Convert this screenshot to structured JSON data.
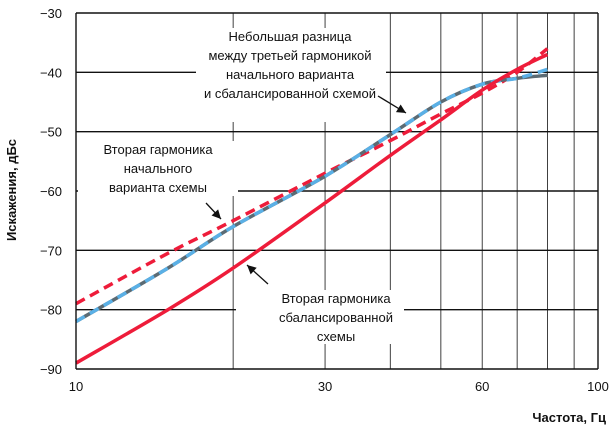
{
  "chart_data": {
    "type": "line",
    "xlabel": "Частота, Гц",
    "ylabel": "Искажения, дБс",
    "xscale": "log",
    "xlim": [
      10,
      100
    ],
    "ylim": [
      -90,
      -30
    ],
    "x_tick_labels": [
      "10",
      "30",
      "60",
      "100"
    ],
    "x_gridlines": [
      20,
      30,
      40,
      50,
      60,
      70,
      80,
      90
    ],
    "y_ticks": [
      -90,
      -80,
      -70,
      -60,
      -50,
      -40,
      -30
    ],
    "grid": true,
    "series": [
      {
        "color": "#ee1c3a",
        "dash": "dashed",
        "x": [
          10,
          15,
          20,
          30,
          40,
          50,
          60,
          70,
          80
        ],
        "y": [
          -79,
          -70.5,
          -65,
          -57,
          -51.5,
          -47,
          -43.5,
          -40,
          -36
        ]
      },
      {
        "color": "#5b6b74",
        "dash": "solid",
        "x": [
          10,
          15,
          20,
          30,
          40,
          50,
          60,
          70,
          80
        ],
        "y": [
          -82,
          -73,
          -66,
          -57.5,
          -50.5,
          -45,
          -42,
          -41,
          -40.5
        ]
      },
      {
        "color": "#5ab0e6",
        "dash": "dashed",
        "x": [
          10,
          15,
          20,
          30,
          40,
          50,
          60,
          70,
          80
        ],
        "y": [
          -82,
          -73,
          -66,
          -57.5,
          -50.5,
          -45,
          -42,
          -41,
          -39.5
        ]
      },
      {
        "color": "#ee1c3a",
        "dash": "solid",
        "x": [
          10,
          15,
          20,
          30,
          40,
          50,
          60,
          70,
          80
        ],
        "y": [
          -89,
          -80,
          -73,
          -62,
          -54,
          -48,
          -43,
          -39.5,
          -37
        ]
      }
    ],
    "annotations": [
      {
        "lines": [
          "Небольшая разница",
          "между третьей гармоникой",
          "начального варианта",
          "и сбалансированной схемой"
        ]
      },
      {
        "lines": [
          "Вторая гармоника",
          "начального",
          "варианта схемы"
        ]
      },
      {
        "lines": [
          "Вторая гармоника",
          "сбалансированной",
          "схемы"
        ]
      }
    ]
  }
}
